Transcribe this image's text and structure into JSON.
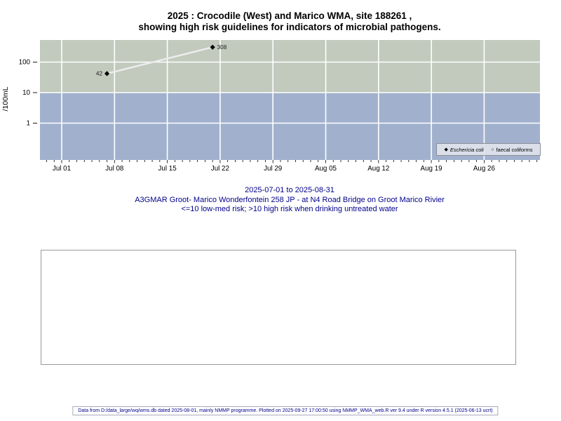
{
  "title": {
    "line1": "2025 : Crocodile (West) and Marico WMA, site 188261 ,",
    "line2": "showing high risk guidelines for indicators of microbial pathogens."
  },
  "chart_data": {
    "type": "scatter",
    "x_axis": {
      "start_date": "2025-07-01",
      "end_date": "2025-08-31",
      "tick_labels": [
        "Jul 01",
        "Jul 08",
        "Jul 15",
        "Jul 22",
        "Jul 29",
        "Aug 05",
        "Aug 12",
        "Aug 19",
        "Aug 26"
      ]
    },
    "y_axis": {
      "label": "/100mL",
      "scale": "log10",
      "ticks": [
        {
          "value": 100,
          "label": "100"
        },
        {
          "value": 10,
          "label": "10"
        },
        {
          "value": 1,
          "label": "1"
        }
      ],
      "approx_range": [
        0.06,
        490
      ]
    },
    "series": [
      {
        "name": "Eschericia coli",
        "marker": "filled-diamond",
        "points": [
          {
            "date": "2025-07-07",
            "value": 42,
            "label": "42",
            "label_side": "left"
          },
          {
            "date": "2025-07-21",
            "value": 308,
            "label": "308",
            "label_side": "right"
          }
        ]
      },
      {
        "name": "faecal coliforms",
        "marker": "open-circle",
        "points": []
      }
    ],
    "risk_bands": [
      {
        "name": "high risk (>10)",
        "boundary": 10,
        "position": "above",
        "color": "#c1cabc"
      },
      {
        "name": "low-med risk (<=10)",
        "boundary": 10,
        "position": "below",
        "color": "#a1b1cd"
      }
    ],
    "gridline_color": "#ffffff",
    "line_color": "#ececec",
    "marker_color": "#000000",
    "grid": true,
    "legend_position": "bottom-right"
  },
  "legend": {
    "items": [
      {
        "symbol": "◆",
        "label": "Eschericia coli",
        "italic": true
      },
      {
        "symbol": "○",
        "label": "faecal coliforms",
        "italic": false
      }
    ]
  },
  "caption": {
    "line1": "2025-07-01 to 2025-08-31",
    "line2": "A3GMAR Groot- Marico Wonderfontein 258 JP - at N4 Road Bridge on Groot Marico Rivier",
    "line3": "<=10 low-med risk; >10 high risk when drinking untreated water"
  },
  "footer": {
    "text": "Data from D:/data_large/wq/wms.db dated 2025-08-01, mainly NMMP programme. Plotted on 2025-09-27 17:00:50 using NMMP_WMA_web.R ver 9.4 under R version 4.5.1 (2025-06-13 ucrt)"
  }
}
